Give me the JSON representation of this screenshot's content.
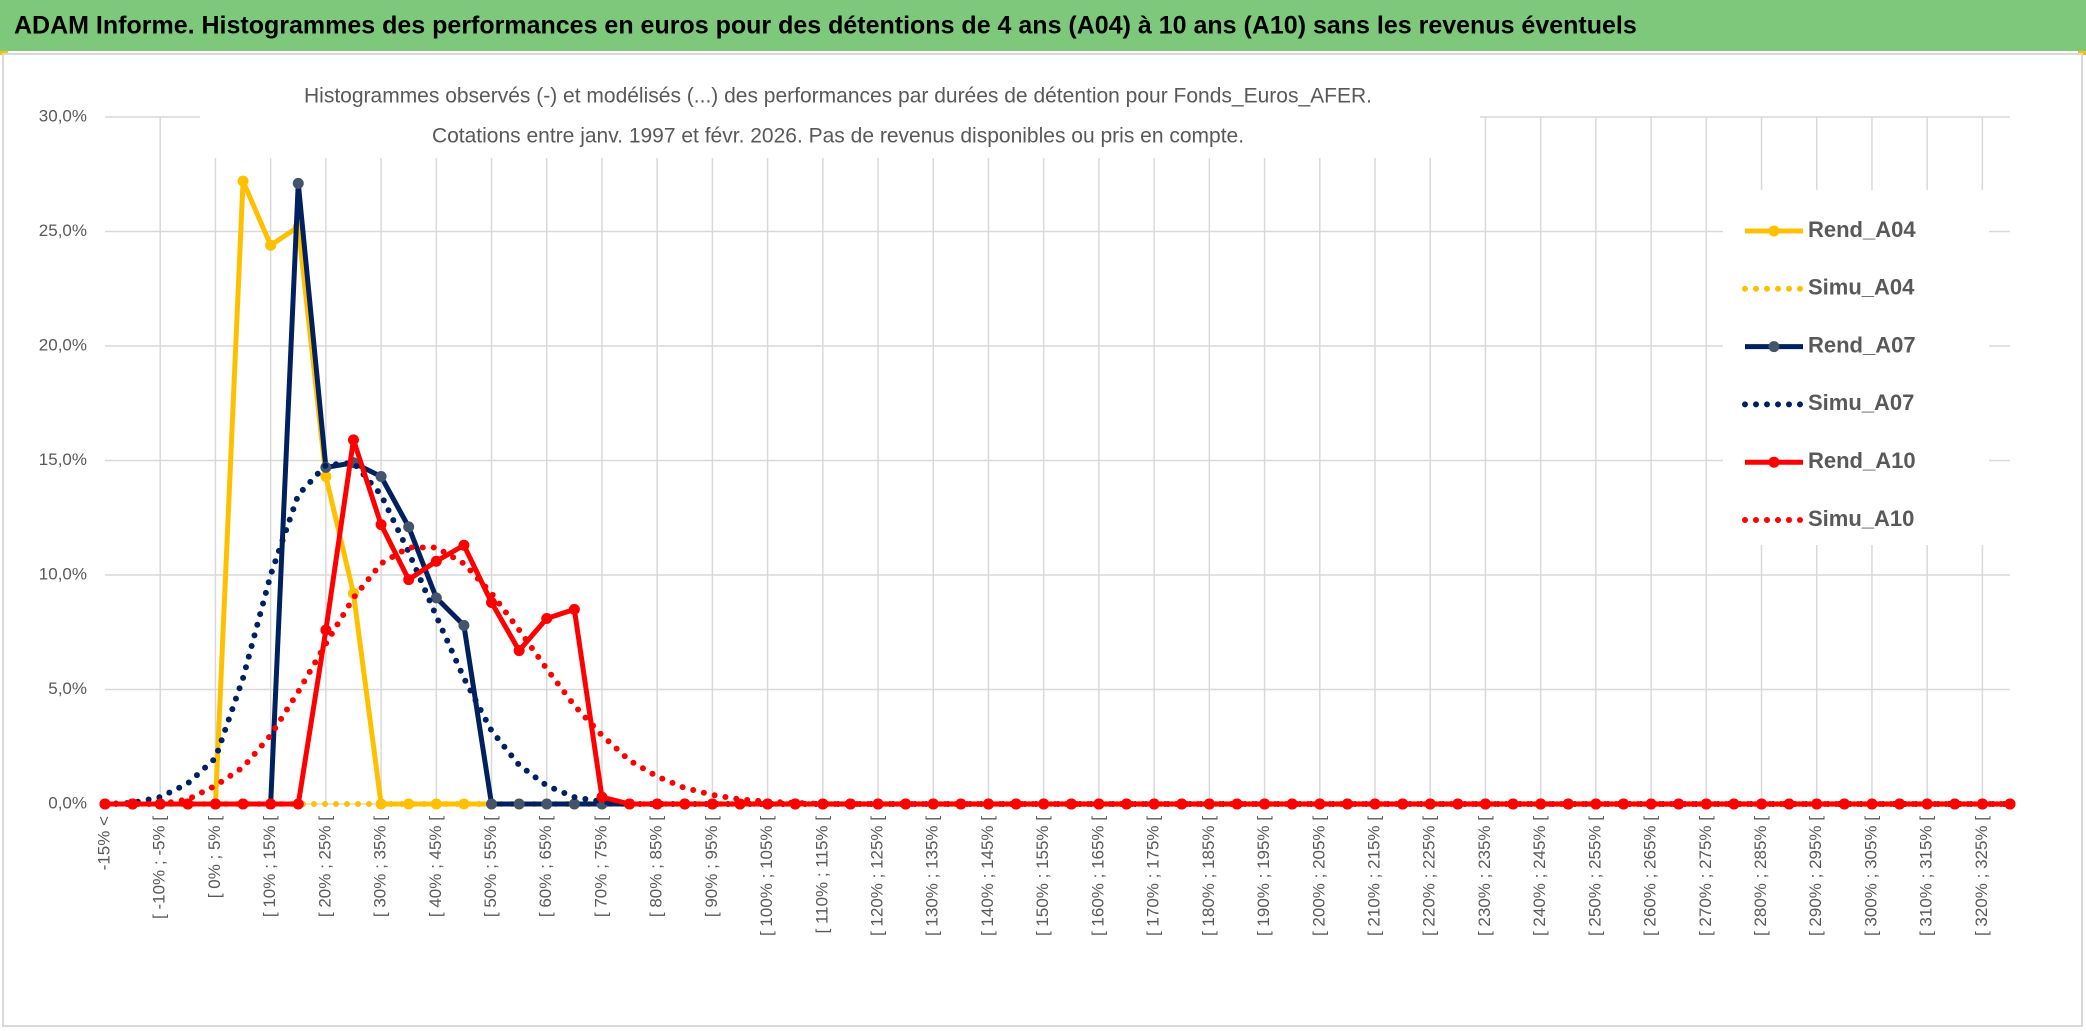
{
  "header": {
    "title": "ADAM Informe. Histogrammes des performances en euros pour des détentions de 4 ans (A04) à 10 ans (A10) sans les revenus éventuels"
  },
  "chart_data": {
    "type": "line",
    "title": [
      "Histogrammes observés (-) et modélisés (...) des performances par durées de détention pour Fonds_Euros_AFER.",
      "Cotations entre janv. 1997 et févr. 2026. Pas de revenus disponibles ou pris en compte."
    ],
    "categories": [
      "-15% <",
      null,
      "[ -10% ; -5% [",
      null,
      "[ 0% ; 5% [",
      null,
      "[ 10% ; 15% [",
      null,
      "[ 20% ; 25% [",
      null,
      "[ 30% ; 35% [",
      null,
      "[ 40% ; 45% [",
      null,
      "[ 50% ; 55% [",
      null,
      "[ 60% ; 65% [",
      null,
      "[ 70% ; 75% [",
      null,
      "[ 80% ; 85% [",
      null,
      "[ 90% ; 95% [",
      null,
      "[ 100% ; 105% [",
      null,
      "[ 110% ; 115% [",
      null,
      "[ 120% ; 125% [",
      null,
      "[ 130% ; 135% [",
      null,
      "[ 140% ; 145% [",
      null,
      "[ 150% ; 155% [",
      null,
      "[ 160% ; 165% [",
      null,
      "[ 170% ; 175% [",
      null,
      "[ 180% ; 185% [",
      null,
      "[ 190% ; 195% [",
      null,
      "[ 200% ; 205% [",
      null,
      "[ 210% ; 215% [",
      null,
      "[ 220% ; 225% [",
      null,
      "[ 230% ; 235% [",
      null,
      "[ 240% ; 245% [",
      null,
      "[ 250% ; 255% [",
      null,
      "[ 260% ; 265% [",
      null,
      "[ 270% ; 275% [",
      null,
      "[ 280% ; 285% [",
      null,
      "[ 290% ; 295% [",
      null,
      "[ 300% ; 305% [",
      null,
      "[ 310% ; 315% [",
      null,
      "[ 320% ; 325% [",
      null
    ],
    "series": [
      {
        "name": "Rend_A04",
        "color": "#FFC000",
        "line_style": "solid",
        "markers": true,
        "values": [
          0,
          0,
          0,
          0,
          0,
          27.2,
          24.4,
          25.2,
          14.3,
          9.2,
          0,
          0,
          0,
          0,
          0,
          0,
          0,
          0,
          0,
          0,
          0,
          0,
          0,
          0,
          0,
          0,
          0,
          0,
          0,
          0,
          0,
          0,
          0,
          0,
          0,
          0,
          0,
          0,
          0,
          0,
          0,
          0,
          0,
          0,
          0,
          0,
          0,
          0,
          0,
          0,
          0,
          0,
          0,
          0,
          0,
          0,
          0,
          0,
          0,
          0,
          0,
          0,
          0,
          0,
          0,
          0,
          0,
          0,
          0,
          0
        ]
      },
      {
        "name": "Simu_A04",
        "color": "#FFC000",
        "line_style": "dotted",
        "markers": false,
        "values": [
          0,
          0,
          0,
          0,
          0,
          0,
          0,
          0,
          0,
          0,
          0,
          0,
          0,
          0,
          0,
          0,
          0,
          0,
          0,
          0,
          0,
          0,
          0,
          0,
          0,
          0,
          0,
          0,
          0,
          0,
          0,
          0,
          0,
          0,
          0,
          0,
          0,
          0,
          0,
          0,
          0,
          0,
          0,
          0,
          0,
          0,
          0,
          0,
          0,
          0,
          0,
          0,
          0,
          0,
          0,
          0,
          0,
          0,
          0,
          0,
          0,
          0,
          0,
          0,
          0,
          0,
          0,
          0,
          0,
          0
        ]
      },
      {
        "name": "Rend_A07",
        "color": "#002060",
        "line_style": "solid",
        "markers": true,
        "values": [
          0,
          0,
          0,
          0,
          0,
          0,
          0,
          27.1,
          14.7,
          14.9,
          14.3,
          12.1,
          9.0,
          7.8,
          0,
          0,
          0,
          0,
          0,
          0,
          0,
          0,
          0,
          0,
          0,
          0,
          0,
          0,
          0,
          0,
          0,
          0,
          0,
          0,
          0,
          0,
          0,
          0,
          0,
          0,
          0,
          0,
          0,
          0,
          0,
          0,
          0,
          0,
          0,
          0,
          0,
          0,
          0,
          0,
          0,
          0,
          0,
          0,
          0,
          0,
          0,
          0,
          0,
          0,
          0,
          0,
          0,
          0,
          0,
          0
        ]
      },
      {
        "name": "Simu_A07",
        "color": "#002060",
        "line_style": "dotted",
        "markers": false,
        "values": [
          0,
          0.05,
          0.3,
          0.9,
          2.0,
          5.5,
          10.0,
          13.5,
          14.8,
          14.9,
          13.5,
          11.0,
          8.2,
          5.5,
          3.2,
          1.7,
          0.8,
          0.3,
          0.1,
          0,
          0,
          0,
          0,
          0,
          0,
          0,
          0,
          0,
          0,
          0,
          0,
          0,
          0,
          0,
          0,
          0,
          0,
          0,
          0,
          0,
          0,
          0,
          0,
          0,
          0,
          0,
          0,
          0,
          0,
          0,
          0,
          0,
          0,
          0,
          0,
          0,
          0,
          0,
          0,
          0,
          0,
          0,
          0,
          0,
          0,
          0,
          0,
          0,
          0,
          0
        ]
      },
      {
        "name": "Rend_A10",
        "color": "#FF0000",
        "line_style": "solid",
        "markers": true,
        "values": [
          0,
          0,
          0,
          0,
          0,
          0,
          0,
          0,
          7.6,
          15.9,
          12.2,
          9.8,
          10.6,
          11.3,
          8.8,
          6.7,
          8.1,
          8.5,
          0.3,
          0,
          0,
          0,
          0,
          0,
          0,
          0,
          0,
          0,
          0,
          0,
          0,
          0,
          0,
          0,
          0,
          0,
          0,
          0,
          0,
          0,
          0,
          0,
          0,
          0,
          0,
          0,
          0,
          0,
          0,
          0,
          0,
          0,
          0,
          0,
          0,
          0,
          0,
          0,
          0,
          0,
          0,
          0,
          0,
          0,
          0,
          0,
          0,
          0,
          0,
          0
        ]
      },
      {
        "name": "Simu_A10",
        "color": "#FF0000",
        "line_style": "dotted",
        "markers": false,
        "values": [
          0,
          0,
          0,
          0.2,
          0.8,
          1.6,
          3.0,
          4.9,
          7.0,
          9.0,
          10.5,
          11.2,
          11.2,
          10.5,
          9.2,
          7.6,
          5.9,
          4.3,
          3.0,
          1.9,
          1.2,
          0.7,
          0.4,
          0.2,
          0.1,
          0.05,
          0,
          0,
          0,
          0,
          0,
          0,
          0,
          0,
          0,
          0,
          0,
          0,
          0,
          0,
          0,
          0,
          0,
          0,
          0,
          0,
          0,
          0,
          0,
          0,
          0,
          0,
          0,
          0,
          0,
          0,
          0,
          0,
          0,
          0,
          0,
          0,
          0,
          0,
          0,
          0,
          0,
          0,
          0,
          0
        ]
      }
    ],
    "ylim": [
      0,
      30
    ],
    "yticks": [
      {
        "value": 0,
        "label": "0,0%"
      },
      {
        "value": 5,
        "label": "5,0%"
      },
      {
        "value": 10,
        "label": "10,0%"
      },
      {
        "value": 15,
        "label": "15,0%"
      },
      {
        "value": 20,
        "label": "20,0%"
      },
      {
        "value": 25,
        "label": "25,0%"
      },
      {
        "value": 30,
        "label": "30,0%"
      }
    ],
    "grid": true,
    "legend": "right"
  }
}
